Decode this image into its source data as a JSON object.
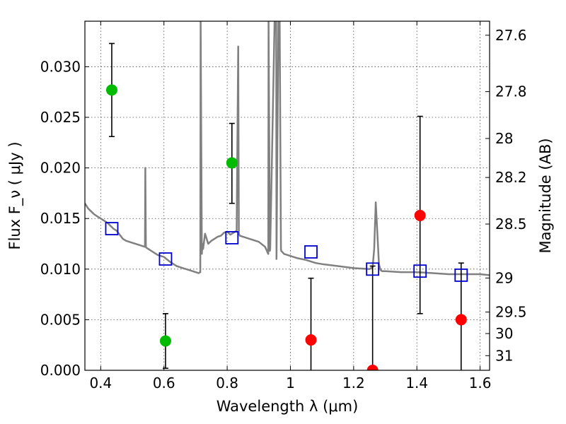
{
  "colors": {
    "spectrum": "#808080",
    "model_points": "#0000cc",
    "green_points": "#00bb00",
    "red_points": "#ff0000",
    "errorbar": "#000000"
  },
  "chart_data": {
    "type": "scatter",
    "title": "",
    "xlabel": "Wavelength  λ (μm)",
    "ylabel": "Flux  F_ν  ( μJy )",
    "y2label": "Magnitude (AB)",
    "xlim": [
      0.35,
      1.63
    ],
    "ylim": [
      0,
      0.0345
    ],
    "xticks": [
      "0.4",
      "0.6",
      "0.8",
      "1",
      "1.2",
      "1.4",
      "1.6"
    ],
    "yticks": [
      "0.000",
      "0.005",
      "0.010",
      "0.015",
      "0.020",
      "0.025",
      "0.030"
    ],
    "y2ticks": [
      "27.6",
      "27.8",
      "28",
      "28.2",
      "28.5",
      "29",
      "29.5",
      "30",
      "31"
    ],
    "grid": true,
    "spectrum": {
      "x": [
        0.35,
        0.36,
        0.37,
        0.38,
        0.39,
        0.4,
        0.41,
        0.42,
        0.43,
        0.44,
        0.45,
        0.46,
        0.47,
        0.48,
        0.49,
        0.5,
        0.52,
        0.54,
        0.541,
        0.543,
        0.545,
        0.56,
        0.58,
        0.6,
        0.62,
        0.64,
        0.66,
        0.68,
        0.7,
        0.71,
        0.715,
        0.716,
        0.72,
        0.722,
        0.724,
        0.73,
        0.74,
        0.75,
        0.76,
        0.77,
        0.78,
        0.79,
        0.8,
        0.81,
        0.82,
        0.83,
        0.835,
        0.837,
        0.84,
        0.86,
        0.88,
        0.9,
        0.92,
        0.93,
        0.931,
        0.935,
        0.936,
        0.95,
        0.955,
        0.956,
        0.962,
        0.966,
        0.97,
        0.971,
        0.98,
        1.0,
        1.02,
        1.05,
        1.08,
        1.1,
        1.15,
        1.2,
        1.25,
        1.26,
        1.265,
        1.27,
        1.275,
        1.28,
        1.285,
        1.29,
        1.3,
        1.35,
        1.4,
        1.45,
        1.5,
        1.55,
        1.6,
        1.63
      ],
      "y": [
        0.0165,
        0.016,
        0.0157,
        0.0154,
        0.0152,
        0.015,
        0.0148,
        0.0146,
        0.0143,
        0.014,
        0.0138,
        0.0134,
        0.013,
        0.0128,
        0.0127,
        0.0126,
        0.0124,
        0.0122,
        0.02,
        0.0122,
        0.0121,
        0.0118,
        0.0114,
        0.0112,
        0.0107,
        0.0103,
        0.0101,
        0.0099,
        0.0097,
        0.0096,
        0.0097,
        0.0345,
        0.0115,
        0.0125,
        0.012,
        0.0135,
        0.0125,
        0.0128,
        0.013,
        0.0132,
        0.0133,
        0.0136,
        0.0137,
        0.0134,
        0.0136,
        0.0138,
        0.032,
        0.0135,
        0.0133,
        0.0131,
        0.0129,
        0.0127,
        0.0122,
        0.0115,
        0.0345,
        0.0118,
        0.012,
        0.0345,
        0.0345,
        0.011,
        0.0345,
        0.0345,
        0.012,
        0.0118,
        0.0115,
        0.0113,
        0.0111,
        0.0109,
        0.0106,
        0.0105,
        0.0103,
        0.0101,
        0.01,
        0.0102,
        0.012,
        0.0166,
        0.0135,
        0.0105,
        0.0099,
        0.0098,
        0.0098,
        0.0097,
        0.0097,
        0.0096,
        0.0095,
        0.0095,
        0.0095,
        0.0094
      ]
    },
    "series": [
      {
        "marker": "open-square",
        "x": [
          0.435,
          0.605,
          0.815,
          1.065,
          1.26,
          1.41,
          1.54
        ],
        "y": [
          0.014,
          0.011,
          0.0131,
          0.0117,
          0.01,
          0.0098,
          0.0094
        ]
      },
      {
        "marker": "filled-circle-green",
        "x": [
          0.435,
          0.605,
          0.815
        ],
        "y": [
          0.0277,
          0.0029,
          0.0205
        ],
        "yerr_low": [
          0.0231,
          0.0002,
          0.0165
        ],
        "yerr_high": [
          0.0323,
          0.0056,
          0.0244
        ]
      },
      {
        "marker": "filled-circle-red",
        "x": [
          1.065,
          1.26,
          1.41,
          1.54
        ],
        "y": [
          0.003,
          0.0,
          0.0153,
          0.005
        ],
        "yerr_low": [
          -0.001,
          -0.001,
          0.0056,
          -0.001
        ],
        "yerr_high": [
          0.0091,
          0.0103,
          0.0251,
          0.0106
        ]
      }
    ]
  }
}
